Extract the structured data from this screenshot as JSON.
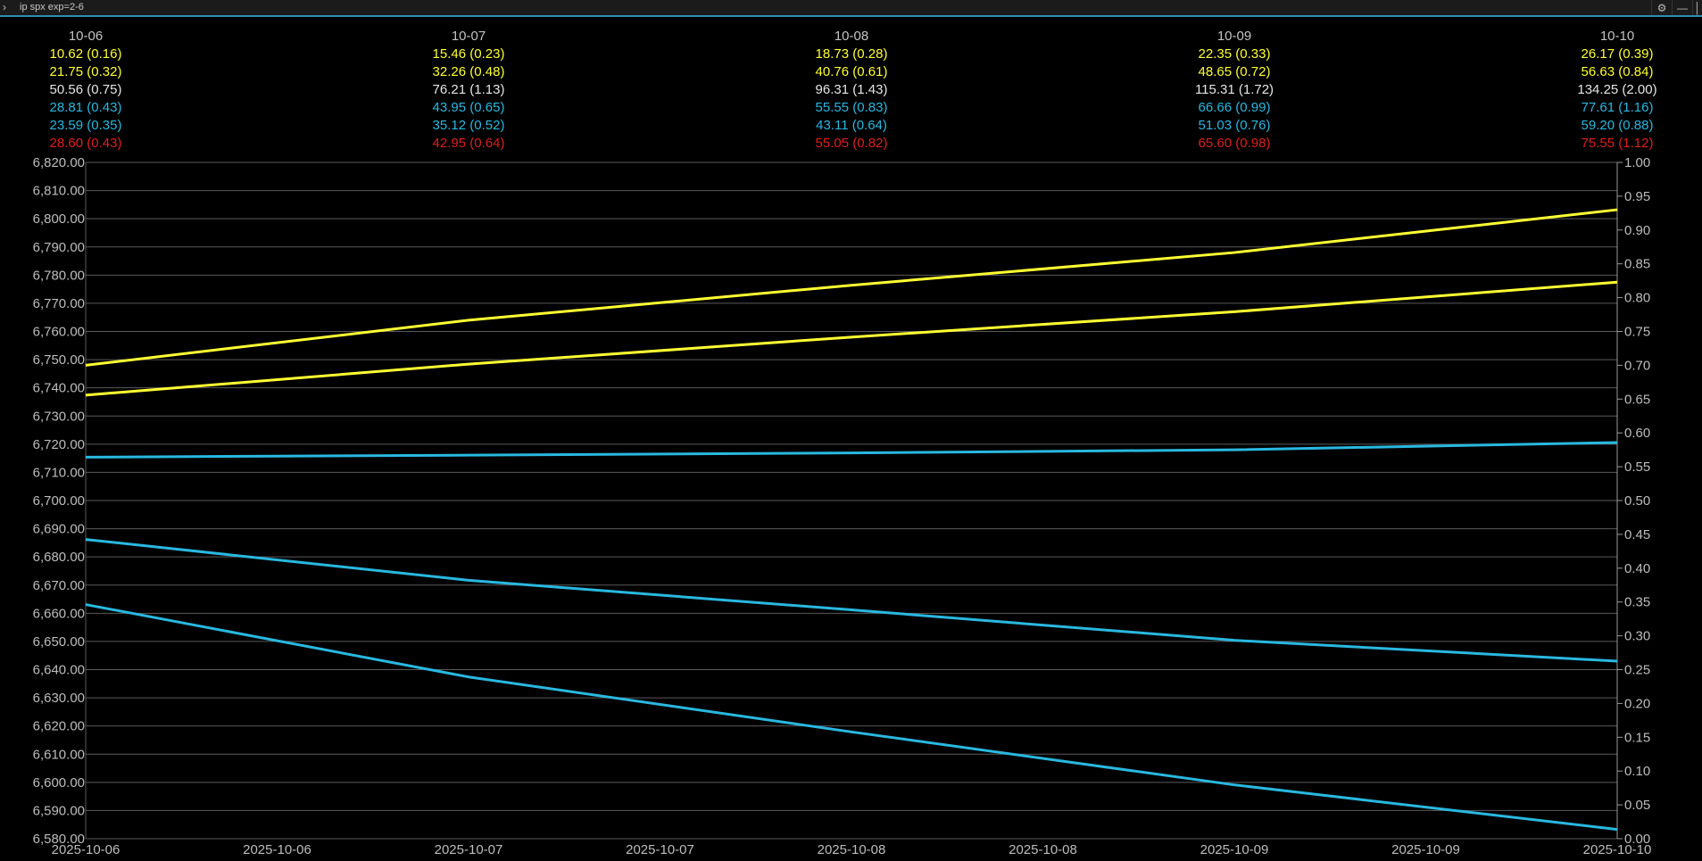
{
  "window": {
    "title": "ip spx exp=2-6",
    "expand_icon": "chevron-right-icon",
    "settings_icon": "gear-icon",
    "minimize_icon": "minimize-icon",
    "maximize_icon": "maximize-icon"
  },
  "colors": {
    "yellow": "#ffff33",
    "white": "#e6e6e6",
    "cyan": "#29b8e0",
    "red": "#e01e1e",
    "grid": "#5a5a5a",
    "accent": "#2d8fb0"
  },
  "header": {
    "row_colors": [
      "yellow",
      "yellow",
      "white",
      "cyan",
      "cyan",
      "red"
    ],
    "columns": [
      {
        "date": "10-06",
        "rows": [
          "10.62 (0.16)",
          "21.75 (0.32)",
          "50.56 (0.75)",
          "28.81 (0.43)",
          "23.59 (0.35)",
          "28.60 (0.43)"
        ]
      },
      {
        "date": "10-07",
        "rows": [
          "15.46 (0.23)",
          "32.26 (0.48)",
          "76.21 (1.13)",
          "43.95 (0.65)",
          "35.12 (0.52)",
          "42.95 (0.64)"
        ]
      },
      {
        "date": "10-08",
        "rows": [
          "18.73 (0.28)",
          "40.76 (0.61)",
          "96.31 (1.43)",
          "55.55 (0.83)",
          "43.11 (0.64)",
          "55.05 (0.82)"
        ]
      },
      {
        "date": "10-09",
        "rows": [
          "22.35 (0.33)",
          "48.65 (0.72)",
          "115.31 (1.72)",
          "66.66 (0.99)",
          "51.03 (0.76)",
          "65.60 (0.98)"
        ]
      },
      {
        "date": "10-10",
        "rows": [
          "26.17 (0.39)",
          "56.63 (0.84)",
          "134.25 (2.00)",
          "77.61 (1.16)",
          "59.20 (0.88)",
          "75.55 (1.12)"
        ]
      }
    ]
  },
  "chart_data": {
    "type": "line",
    "grid": true,
    "ylim": [
      6580,
      6820
    ],
    "y2lim": [
      0,
      1
    ],
    "y_ticks": [
      "6,820.00",
      "6,810.00",
      "6,800.00",
      "6,790.00",
      "6,780.00",
      "6,770.00",
      "6,760.00",
      "6,750.00",
      "6,740.00",
      "6,730.00",
      "6,720.00",
      "6,710.00",
      "6,700.00",
      "6,690.00",
      "6,680.00",
      "6,670.00",
      "6,660.00",
      "6,650.00",
      "6,640.00",
      "6,630.00",
      "6,620.00",
      "6,610.00",
      "6,600.00",
      "6,590.00",
      "6,580.00"
    ],
    "y2_ticks": [
      "1.00",
      "0.95",
      "0.90",
      "0.85",
      "0.80",
      "0.75",
      "0.70",
      "0.65",
      "0.60",
      "0.55",
      "0.50",
      "0.45",
      "0.40",
      "0.35",
      "0.30",
      "0.25",
      "0.20",
      "0.15",
      "0.10",
      "0.05",
      "0.00"
    ],
    "x_ticks": [
      "2025-10-06",
      "2025-10-06",
      "2025-10-07",
      "2025-10-07",
      "2025-10-08",
      "2025-10-08",
      "2025-10-09",
      "2025-10-09",
      "2025-10-10"
    ],
    "x_categories": [
      "2025-10-06",
      "2025-10-07",
      "2025-10-08",
      "2025-10-09",
      "2025-10-10"
    ],
    "series": [
      {
        "color": "yellow",
        "values": [
          6748.0,
          6764.0,
          6776.4,
          6788.0,
          6803.2
        ]
      },
      {
        "color": "yellow",
        "values": [
          6737.4,
          6748.4,
          6758.0,
          6767.0,
          6777.5
        ]
      },
      {
        "color": "cyan",
        "values": [
          6715.4,
          6716.1,
          6716.9,
          6718.0,
          6720.6
        ]
      },
      {
        "color": "cyan",
        "values": [
          6686.2,
          6671.7,
          6661.2,
          6650.4,
          6643.0
        ]
      },
      {
        "color": "cyan",
        "values": [
          6663.1,
          6637.4,
          6617.9,
          6599.1,
          6583.3
        ]
      }
    ]
  }
}
